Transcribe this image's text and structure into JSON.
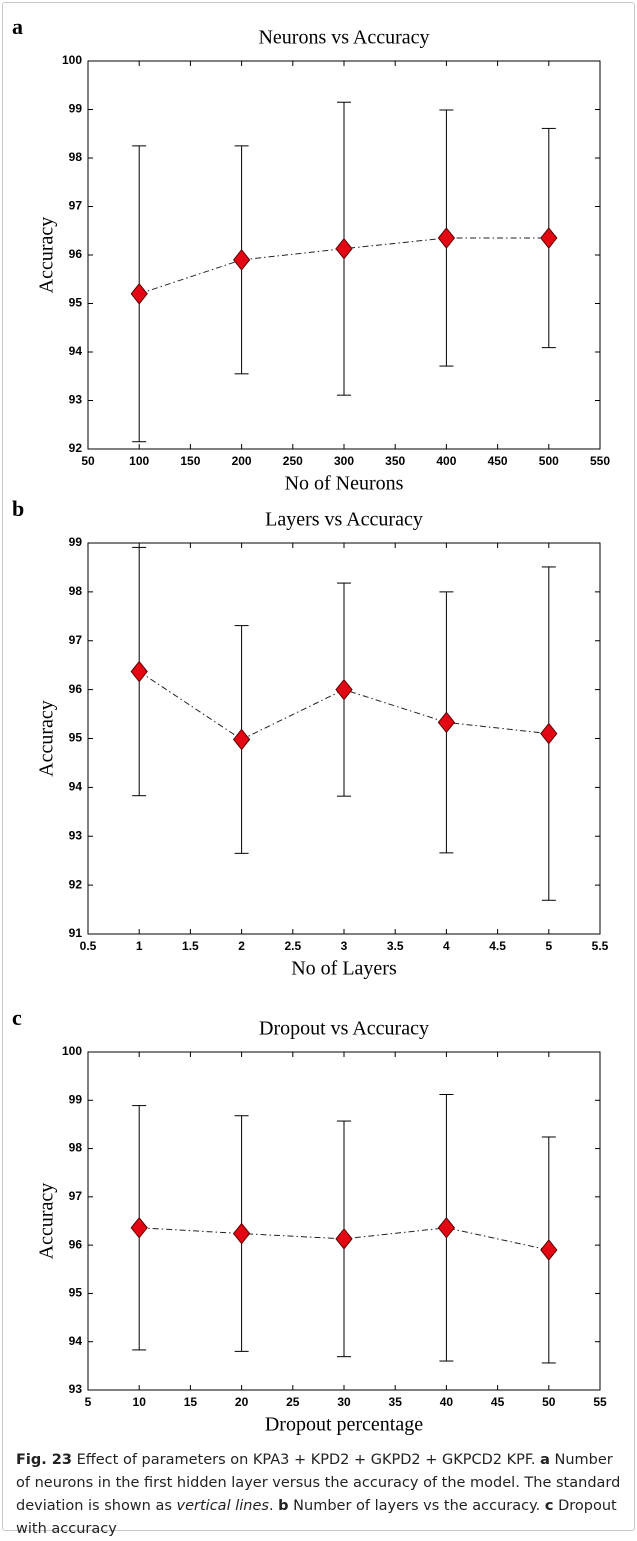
{
  "chart_data": [
    {
      "type": "line",
      "panel_label": "a",
      "title": "Neurons vs Accuracy",
      "x_label": "No of Neurons",
      "y_label": "Accuracy",
      "x": [
        100,
        200,
        300,
        400,
        500
      ],
      "series": [
        {
          "color": "#e30613",
          "values": [
            95.2,
            95.9,
            96.13,
            96.35,
            96.35
          ],
          "errors": [
            3.05,
            2.35,
            3.02,
            2.64,
            2.26
          ]
        }
      ],
      "xlim": [
        50,
        550
      ],
      "xticks": [
        50,
        100,
        150,
        200,
        250,
        300,
        350,
        400,
        450,
        500,
        550
      ],
      "ylim": [
        92,
        100
      ],
      "yticks": [
        92,
        93,
        94,
        95,
        96,
        97,
        98,
        99,
        100
      ]
    },
    {
      "type": "line",
      "panel_label": "b",
      "title": "Layers vs Accuracy",
      "x_label": "No of Layers",
      "y_label": "Accuracy",
      "x": [
        1,
        2,
        3,
        4,
        5
      ],
      "series": [
        {
          "color": "#e30613",
          "values": [
            96.37,
            94.98,
            96.0,
            95.33,
            95.1
          ],
          "errors": [
            2.54,
            2.33,
            2.18,
            2.67,
            3.41
          ]
        }
      ],
      "xlim": [
        0.5,
        5.5
      ],
      "xticks": [
        0.5,
        1,
        1.5,
        2,
        2.5,
        3,
        3.5,
        4,
        4.5,
        5,
        5.5
      ],
      "ylim": [
        91,
        99
      ],
      "yticks": [
        91,
        92,
        93,
        94,
        95,
        96,
        97,
        98,
        99
      ]
    },
    {
      "type": "line",
      "panel_label": "c",
      "title": "Dropout vs Accuracy",
      "x_label": "Dropout percentage",
      "y_label": "Accuracy",
      "x": [
        10,
        20,
        30,
        40,
        50
      ],
      "series": [
        {
          "color": "#e30613",
          "values": [
            96.36,
            96.24,
            96.13,
            96.36,
            95.9
          ],
          "errors": [
            2.53,
            2.44,
            2.44,
            2.76,
            2.34
          ]
        }
      ],
      "xlim": [
        5,
        55
      ],
      "xticks": [
        5,
        10,
        15,
        20,
        25,
        30,
        35,
        40,
        45,
        50,
        55
      ],
      "ylim": [
        93,
        100
      ],
      "yticks": [
        93,
        94,
        95,
        96,
        97,
        98,
        99,
        100
      ]
    }
  ],
  "caption": {
    "parts": [
      "Fig. 23",
      " Effect of parameters on KPA3 + KPD2 + GKPD2 + GKPCD2 KPF. ",
      "a",
      " Number of neurons in the first hidden layer versus the accuracy of the model. The standard deviation is shown as ",
      "vertical lines",
      ". ",
      "b",
      " Number of layers vs the accuracy. ",
      "c",
      " Dropout with accuracy"
    ]
  }
}
